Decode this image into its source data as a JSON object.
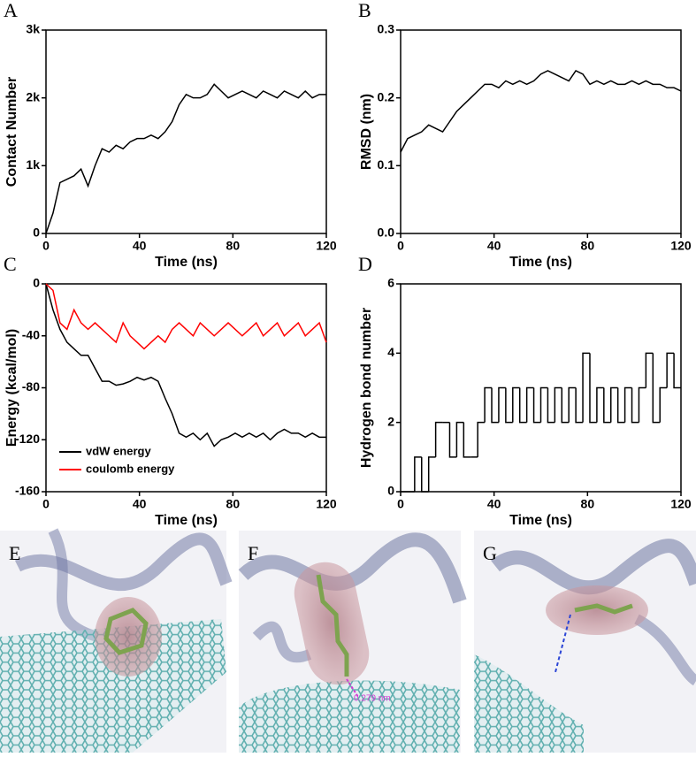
{
  "chart_data": [
    {
      "type": "line",
      "panel": "A",
      "x_label": "Time (ns)",
      "y_label": "Contact Number",
      "color": "#000000",
      "x": [
        0,
        3,
        6,
        9,
        12,
        15,
        18,
        21,
        24,
        27,
        30,
        33,
        36,
        39,
        42,
        45,
        48,
        51,
        54,
        57,
        60,
        63,
        66,
        69,
        72,
        75,
        78,
        81,
        84,
        87,
        90,
        93,
        96,
        99,
        102,
        105,
        108,
        111,
        114,
        117,
        120
      ],
      "values": [
        0,
        300,
        750,
        800,
        850,
        950,
        700,
        1000,
        1250,
        1200,
        1300,
        1250,
        1350,
        1400,
        1400,
        1450,
        1400,
        1500,
        1650,
        1900,
        2050,
        2000,
        2000,
        2050,
        2200,
        2100,
        2000,
        2050,
        2100,
        2050,
        2000,
        2100,
        2050,
        2000,
        2100,
        2050,
        2000,
        2100,
        2000,
        2050,
        2050
      ],
      "xlim": [
        0,
        120
      ],
      "xticks": [
        0,
        40,
        80,
        120
      ],
      "ylim": [
        0,
        3000
      ],
      "yticks": [
        0,
        {
          "value": 1000,
          "label": "1k"
        },
        {
          "value": 2000,
          "label": "2k"
        },
        {
          "value": 3000,
          "label": "3k"
        }
      ]
    },
    {
      "type": "line",
      "panel": "B",
      "x_label": "Time (ns)",
      "y_label": "RMSD (nm)",
      "color": "#000000",
      "x": [
        0,
        3,
        6,
        9,
        12,
        15,
        18,
        21,
        24,
        27,
        30,
        33,
        36,
        39,
        42,
        45,
        48,
        51,
        54,
        57,
        60,
        63,
        66,
        69,
        72,
        75,
        78,
        81,
        84,
        87,
        90,
        93,
        96,
        99,
        102,
        105,
        108,
        111,
        114,
        117,
        120
      ],
      "values": [
        0.12,
        0.14,
        0.145,
        0.15,
        0.16,
        0.155,
        0.15,
        0.165,
        0.18,
        0.19,
        0.2,
        0.21,
        0.22,
        0.22,
        0.215,
        0.225,
        0.22,
        0.225,
        0.22,
        0.225,
        0.235,
        0.24,
        0.235,
        0.23,
        0.225,
        0.24,
        0.235,
        0.22,
        0.225,
        0.22,
        0.225,
        0.22,
        0.22,
        0.225,
        0.22,
        0.225,
        0.22,
        0.22,
        0.215,
        0.215,
        0.21
      ],
      "xlim": [
        0,
        120
      ],
      "xticks": [
        0,
        40,
        80,
        120
      ],
      "ylim": [
        0,
        0.3
      ],
      "yticks": [
        {
          "value": 0,
          "label": "0.0"
        },
        0.1,
        0.2,
        0.3
      ]
    },
    {
      "type": "line",
      "panel": "C",
      "x_label": "Time (ns)",
      "y_label": "Energy (kcal/mol)",
      "legend": "lower-left",
      "x": [
        0,
        3,
        6,
        9,
        12,
        15,
        18,
        21,
        24,
        27,
        30,
        33,
        36,
        39,
        42,
        45,
        48,
        51,
        54,
        57,
        60,
        63,
        66,
        69,
        72,
        75,
        78,
        81,
        84,
        87,
        90,
        93,
        96,
        99,
        102,
        105,
        108,
        111,
        114,
        117,
        120
      ],
      "series": [
        {
          "name": "vdW energy",
          "color": "#000000",
          "values": [
            0,
            -20,
            -35,
            -45,
            -50,
            -55,
            -55,
            -65,
            -75,
            -75,
            -78,
            -77,
            -75,
            -72,
            -74,
            -72,
            -75,
            -88,
            -100,
            -115,
            -118,
            -115,
            -120,
            -115,
            -125,
            -120,
            -118,
            -115,
            -118,
            -115,
            -118,
            -115,
            -120,
            -115,
            -112,
            -115,
            -115,
            -118,
            -115,
            -118,
            -118
          ]
        },
        {
          "name": "coulomb energy",
          "color": "#ff0000",
          "values": [
            0,
            -5,
            -30,
            -35,
            -20,
            -30,
            -35,
            -30,
            -35,
            -40,
            -45,
            -30,
            -40,
            -45,
            -50,
            -45,
            -40,
            -45,
            -35,
            -30,
            -35,
            -40,
            -30,
            -35,
            -40,
            -35,
            -30,
            -35,
            -40,
            -35,
            -30,
            -40,
            -35,
            -30,
            -40,
            -35,
            -30,
            -40,
            -35,
            -30,
            -45
          ]
        }
      ],
      "xlim": [
        0,
        120
      ],
      "xticks": [
        0,
        40,
        80,
        120
      ],
      "ylim": [
        -160,
        0
      ],
      "yticks": [
        -160,
        -120,
        -80,
        -40,
        0
      ]
    },
    {
      "type": "step",
      "panel": "D",
      "x_label": "Time (ns)",
      "y_label": "Hydrogen bond number",
      "color": "#000000",
      "x": [
        0,
        3,
        6,
        9,
        12,
        15,
        18,
        21,
        24,
        27,
        30,
        33,
        36,
        39,
        42,
        45,
        48,
        51,
        54,
        57,
        60,
        63,
        66,
        69,
        72,
        75,
        78,
        81,
        84,
        87,
        90,
        93,
        96,
        99,
        102,
        105,
        108,
        111,
        114,
        117,
        120
      ],
      "values": [
        0,
        0,
        1,
        0,
        1,
        2,
        2,
        1,
        2,
        1,
        1,
        2,
        3,
        2,
        3,
        2,
        3,
        2,
        3,
        2,
        3,
        2,
        3,
        2,
        3,
        2,
        4,
        2,
        3,
        2,
        3,
        2,
        3,
        2,
        3,
        4,
        2,
        3,
        4,
        3,
        3
      ],
      "xlim": [
        0,
        120
      ],
      "xticks": [
        0,
        40,
        80,
        120
      ],
      "ylim": [
        0,
        6
      ],
      "yticks": [
        0,
        2,
        4,
        6
      ]
    }
  ],
  "images": [
    {
      "panel": "E"
    },
    {
      "panel": "F",
      "annotation": "0.279 nm"
    },
    {
      "panel": "G"
    }
  ]
}
